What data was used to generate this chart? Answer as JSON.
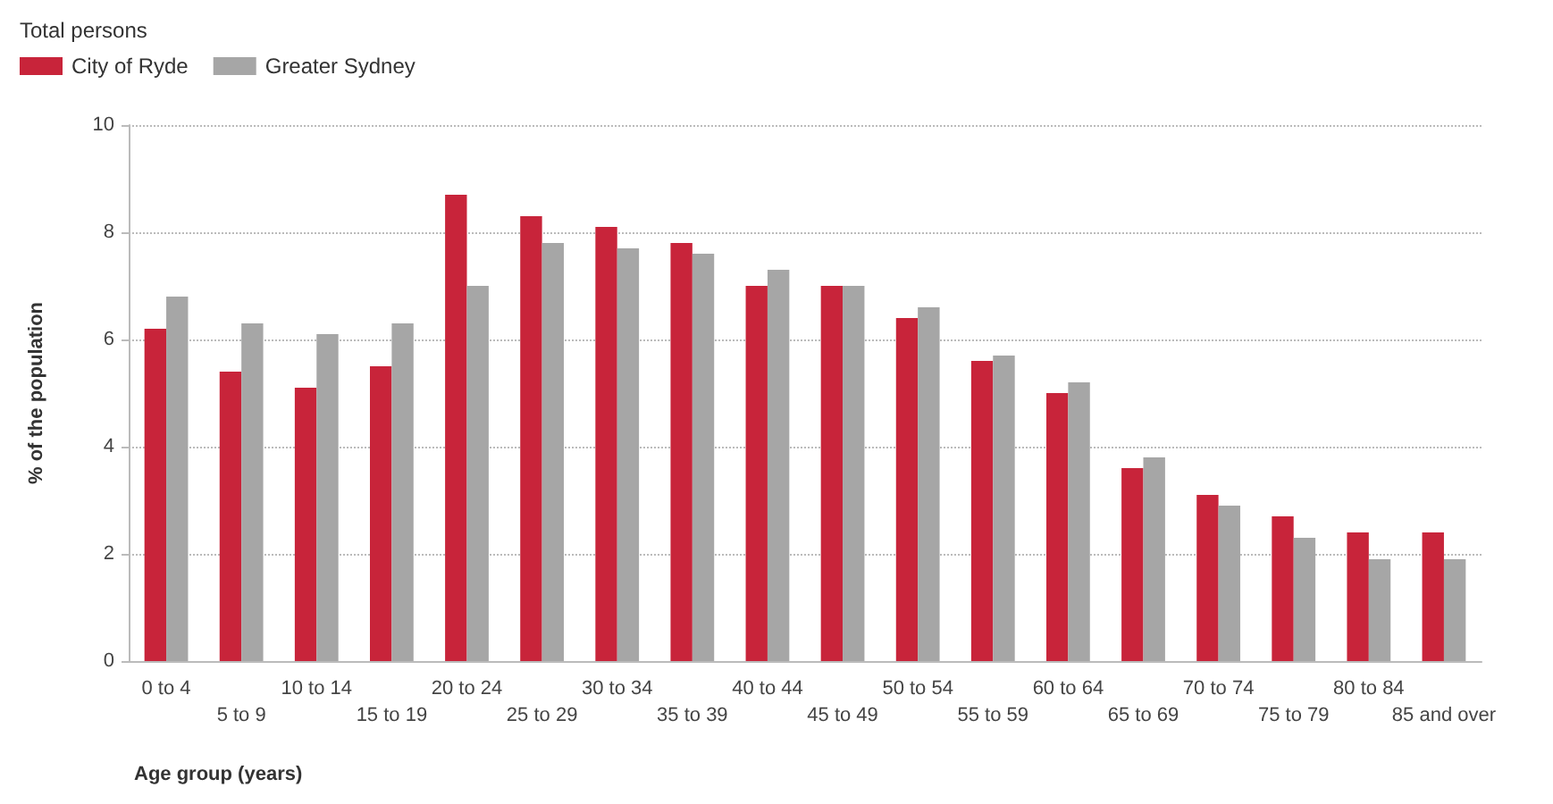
{
  "chart_data": {
    "type": "bar",
    "subtitle": "Total persons",
    "xlabel": "Age group (years)",
    "ylabel": "% of the population",
    "categories": [
      "0 to 4",
      "5 to 9",
      "10 to 14",
      "15 to 19",
      "20 to 24",
      "25 to 29",
      "30 to 34",
      "35 to 39",
      "40 to 44",
      "45 to 49",
      "50 to 54",
      "55 to 59",
      "60 to 64",
      "65 to 69",
      "70 to 74",
      "75 to 79",
      "80 to 84",
      "85 and over"
    ],
    "series": [
      {
        "name": "City of Ryde",
        "color": "#c8243a",
        "values": [
          6.2,
          5.4,
          5.1,
          5.5,
          8.7,
          8.3,
          8.1,
          7.8,
          7.0,
          7.0,
          6.4,
          5.6,
          5.0,
          3.6,
          3.1,
          2.7,
          2.4,
          2.4
        ]
      },
      {
        "name": "Greater Sydney",
        "color": "#a6a6a6",
        "values": [
          6.8,
          6.3,
          6.1,
          6.3,
          7.0,
          7.8,
          7.7,
          7.6,
          7.3,
          7.0,
          6.6,
          5.7,
          5.2,
          3.8,
          2.9,
          2.3,
          1.9,
          1.9
        ]
      }
    ],
    "ylim": [
      0,
      10
    ],
    "yticks": [
      0,
      2,
      4,
      6,
      8,
      10
    ],
    "grid": "y",
    "legend": "top left"
  }
}
